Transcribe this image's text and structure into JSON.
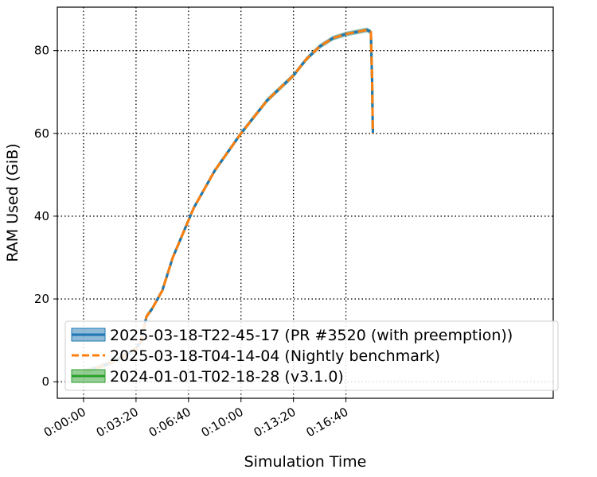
{
  "chart_data": {
    "type": "line",
    "title": "",
    "xlabel": "Simulation Time",
    "ylabel": "RAM Used (GiB)",
    "x_unit": "seconds",
    "xlim": [
      -100,
      1790
    ],
    "ylim": [
      -4,
      90.5
    ],
    "xticks": [
      0,
      200,
      400,
      600,
      800,
      1000
    ],
    "xtick_labels": [
      "0:00:00",
      "0:03:20",
      "0:06:40",
      "0:10:00",
      "0:13:20",
      "0:16:40"
    ],
    "yticks": [
      0,
      20,
      40,
      60,
      80
    ],
    "ytick_labels": [
      "0",
      "20",
      "40",
      "60",
      "80"
    ],
    "grid": true,
    "legend_position": "lower-left",
    "series": [
      {
        "name": "2025-03-18-T22-45-17 (PR #3520 (with preemption))",
        "color": "#1f77b4",
        "style": "solid",
        "band": true,
        "x": [
          0,
          50,
          100,
          150,
          200,
          220,
          240,
          260,
          300,
          340,
          380,
          420,
          460,
          500,
          550,
          600,
          650,
          700,
          750,
          800,
          850,
          900,
          950,
          1000,
          1040,
          1080,
          1095,
          1100,
          1102,
          1103
        ],
        "y": [
          2.5,
          3.3,
          4.5,
          6.0,
          8.0,
          10.0,
          15.8,
          17.5,
          22.0,
          30.0,
          36.0,
          42.0,
          46.5,
          51.0,
          55.5,
          60.0,
          64.0,
          68.0,
          71.0,
          74.0,
          78.0,
          81.0,
          83.0,
          84.0,
          84.5,
          85.0,
          84.5,
          72.0,
          62.0,
          60.0
        ]
      },
      {
        "name": "2025-03-18-T04-14-04 (Nightly benchmark)",
        "color": "#ff7f0e",
        "style": "dashed",
        "band": false,
        "x": [
          0,
          50,
          100,
          150,
          200,
          220,
          240,
          260,
          300,
          340,
          380,
          420,
          460,
          500,
          550,
          600,
          650,
          700,
          750,
          800,
          850,
          900,
          950,
          1000,
          1040,
          1080,
          1095,
          1100,
          1102,
          1103
        ],
        "y": [
          2.5,
          3.3,
          4.5,
          6.0,
          8.0,
          10.0,
          15.8,
          17.5,
          22.0,
          30.0,
          36.0,
          42.0,
          46.5,
          51.0,
          55.5,
          60.0,
          64.0,
          68.0,
          71.0,
          74.0,
          78.0,
          81.0,
          83.0,
          84.0,
          84.5,
          85.0,
          84.5,
          72.0,
          62.0,
          60.0
        ]
      },
      {
        "name": "2024-01-01-T02-18-28 (v3.1.0)",
        "color": "#2ca02c",
        "style": "solid",
        "band": true,
        "x": [
          0,
          50,
          100,
          150,
          200,
          220,
          240,
          260,
          300,
          340,
          380,
          420,
          460,
          500,
          550,
          600,
          650,
          700,
          750,
          800,
          850,
          900,
          950,
          1000,
          1040,
          1080,
          1095,
          1100,
          1102,
          1103
        ],
        "y": [
          2.5,
          3.3,
          4.5,
          6.0,
          8.0,
          10.0,
          15.8,
          17.5,
          22.0,
          30.0,
          36.0,
          42.0,
          46.5,
          51.0,
          55.5,
          60.0,
          64.0,
          68.0,
          71.0,
          74.0,
          78.0,
          81.0,
          83.0,
          84.0,
          84.5,
          85.0,
          84.5,
          72.0,
          62.0,
          60.0
        ]
      }
    ]
  }
}
